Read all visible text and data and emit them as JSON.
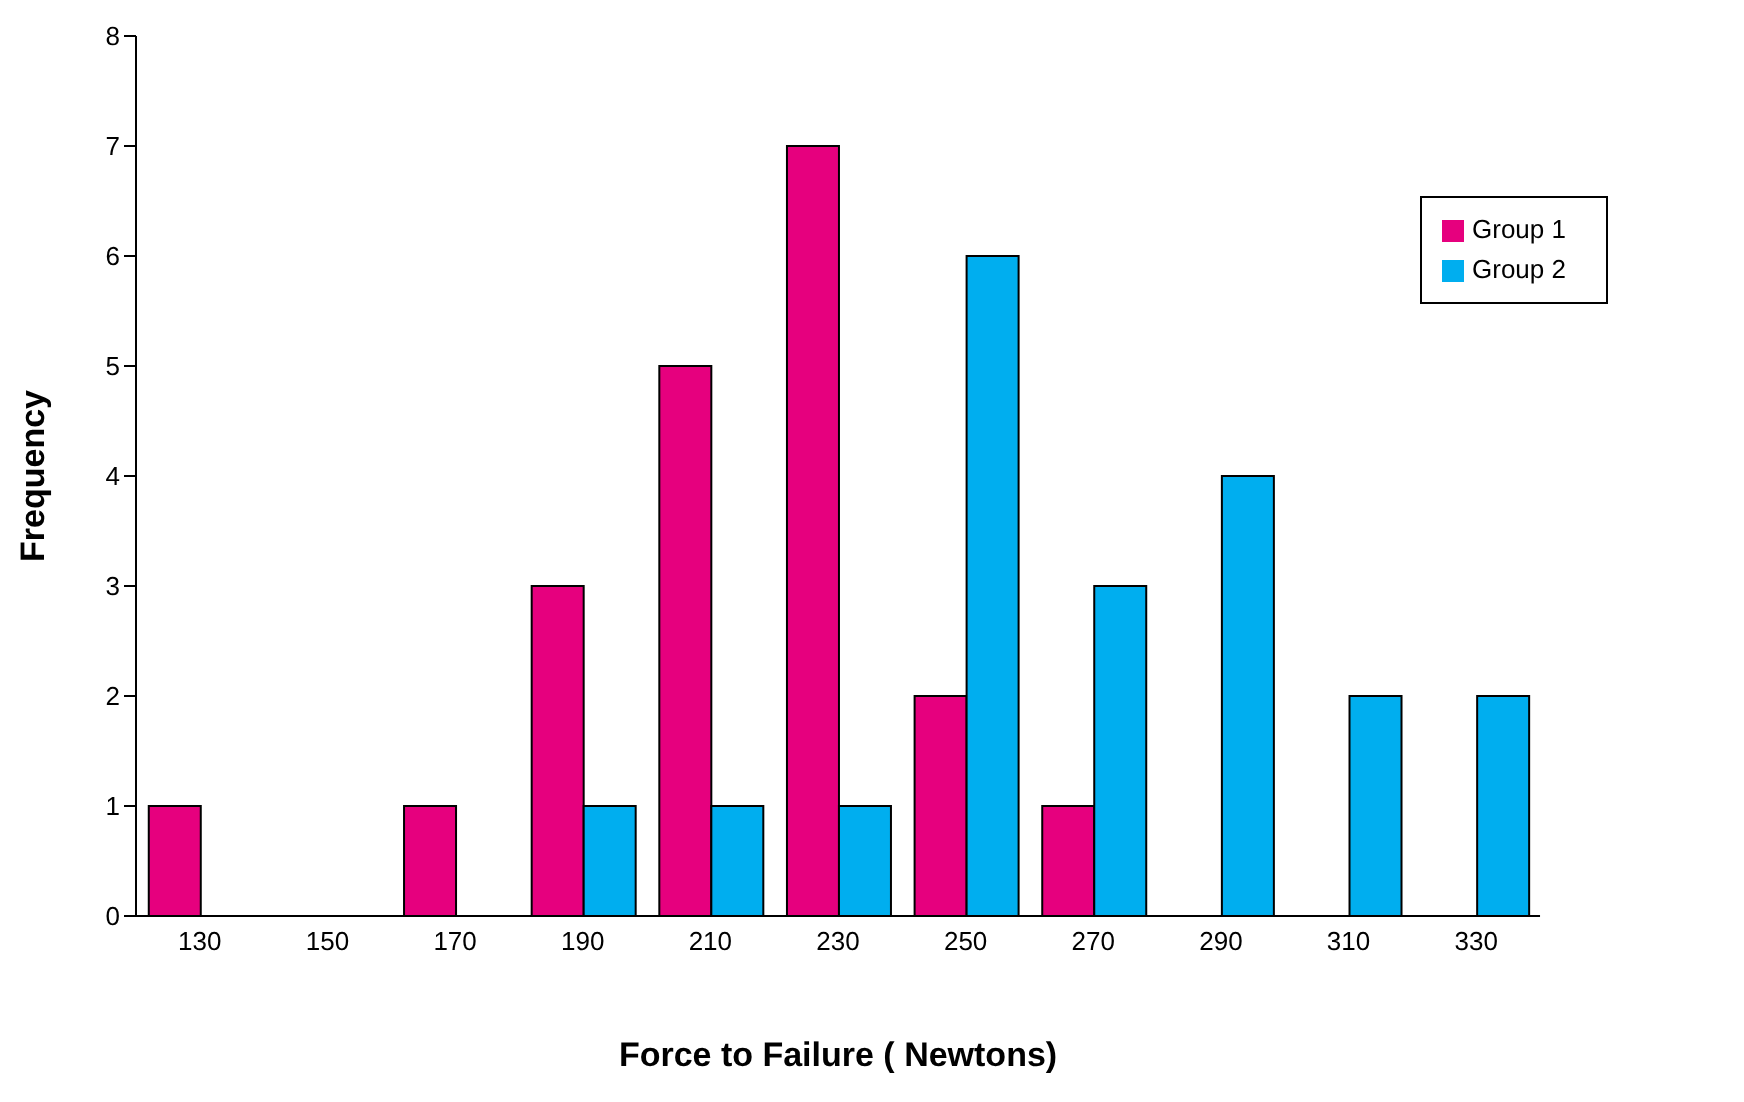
{
  "chart_data": {
    "type": "bar",
    "xlabel": "Force to Failure ( Newtons)",
    "ylabel": "Frequency",
    "categories": [
      "130",
      "150",
      "170",
      "190",
      "210",
      "230",
      "250",
      "270",
      "290",
      "310",
      "330"
    ],
    "series": [
      {
        "name": "Group 1",
        "color": "#e6007e",
        "values": [
          1,
          0,
          1,
          3,
          5,
          7,
          2,
          1,
          0,
          0,
          0
        ]
      },
      {
        "name": "Group 2",
        "color": "#00aeef",
        "values": [
          0,
          0,
          0,
          1,
          1,
          1,
          6,
          3,
          4,
          2,
          2
        ]
      }
    ],
    "ylim": [
      0,
      8
    ],
    "yticks": [
      0,
      1,
      2,
      3,
      4,
      5,
      6,
      7,
      8
    ],
    "grid": false,
    "legend": "top right"
  }
}
